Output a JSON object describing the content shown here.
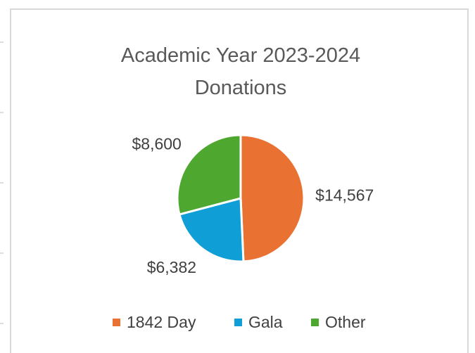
{
  "chart_data": {
    "type": "pie",
    "title": "Academic Year 2023-2024 Donations",
    "categories": [
      "1842 Day",
      "Gala",
      "Other"
    ],
    "values": [
      14567,
      6382,
      8600
    ],
    "value_labels": [
      "$14,567",
      "$6,382",
      "$8,600"
    ],
    "colors": [
      "#e97132",
      "#0f9ed5",
      "#4ea72e"
    ],
    "legend": "bottom"
  }
}
